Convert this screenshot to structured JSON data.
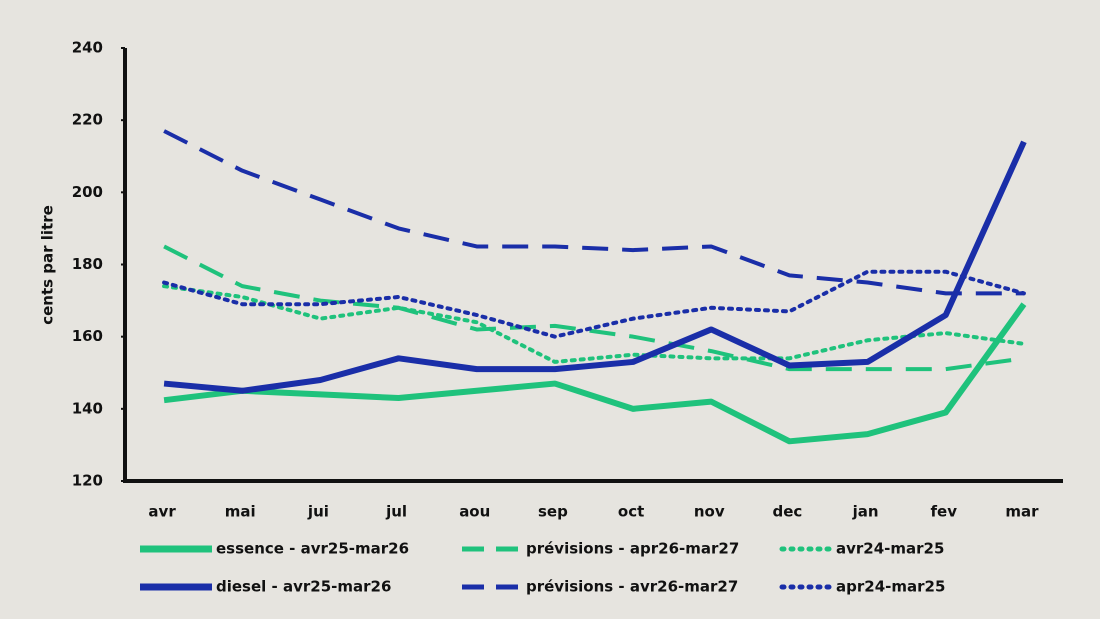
{
  "chart_data": {
    "type": "line",
    "ylabel": "cents par litre",
    "categories": [
      "avr",
      "mai",
      "jui",
      "jul",
      "aou",
      "sep",
      "oct",
      "nov",
      "dec",
      "jan",
      "fev",
      "mar"
    ],
    "ylim": [
      120,
      240
    ],
    "yticks": [
      120,
      140,
      160,
      180,
      200,
      220,
      240
    ],
    "series": [
      {
        "name": "essence - avr25-mar26",
        "color": "#1fc27c",
        "dash": "solid",
        "values": [
          142.4,
          145,
          144,
          143,
          145,
          147,
          140,
          142,
          131,
          133,
          139,
          169
        ]
      },
      {
        "name": "prévisions - apr26-mar27",
        "color": "#1fc27c",
        "dash": "dashed",
        "values": [
          185,
          174,
          170,
          168,
          162,
          163,
          160,
          156,
          151,
          151,
          151,
          154
        ]
      },
      {
        "name": "avr24-mar25",
        "color": "#1fc27c",
        "dash": "dotted",
        "values": [
          174,
          171,
          165,
          168,
          164,
          153,
          155,
          154,
          154,
          159,
          161,
          158
        ]
      },
      {
        "name": "diesel - avr25-mar26",
        "color": "#1a2ea8",
        "dash": "solid",
        "values": [
          147,
          145,
          148,
          154,
          151,
          151,
          153,
          162,
          152,
          153,
          166,
          214
        ]
      },
      {
        "name": "prévisions - avr26-mar27",
        "color": "#1a2ea8",
        "dash": "dashed",
        "values": [
          217,
          206,
          198,
          190,
          185,
          185,
          184,
          185,
          177,
          175,
          172,
          172
        ]
      },
      {
        "name": "apr24-mar25",
        "color": "#1a2ea8",
        "dash": "dotted",
        "values": [
          175,
          169,
          169,
          171,
          166,
          160,
          165,
          168,
          167,
          178,
          178,
          172
        ]
      }
    ]
  }
}
